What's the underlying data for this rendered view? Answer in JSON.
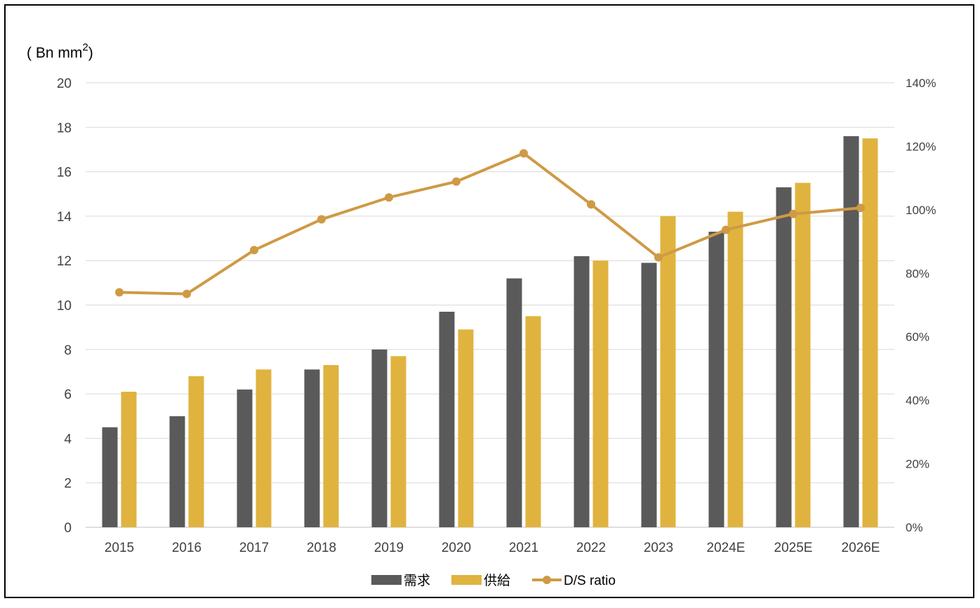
{
  "chart_data": {
    "type": "bar",
    "unit_label": "( Bn mm",
    "unit_sup": "2",
    "unit_close": ")",
    "categories": [
      "2015",
      "2016",
      "2017",
      "2018",
      "2019",
      "2020",
      "2021",
      "2022",
      "2023",
      "2024E",
      "2025E",
      "2026E"
    ],
    "series": [
      {
        "name": "需求",
        "type": "bar",
        "color": "#5a5a5a",
        "values": [
          4.5,
          5.0,
          6.2,
          7.1,
          8.0,
          9.7,
          11.2,
          12.2,
          11.9,
          13.3,
          15.3,
          17.6
        ]
      },
      {
        "name": "供給",
        "type": "bar",
        "color": "#e0b33f",
        "values": [
          6.1,
          6.8,
          7.1,
          7.3,
          7.7,
          8.9,
          9.5,
          12.0,
          14.0,
          14.2,
          15.5,
          17.5
        ]
      },
      {
        "name": "D/S ratio",
        "type": "line",
        "axis": "right",
        "color": "#cf9a45",
        "values": [
          0.74,
          0.735,
          0.873,
          0.97,
          1.039,
          1.089,
          1.178,
          1.017,
          0.85,
          0.937,
          0.987,
          1.006
        ]
      }
    ],
    "ylim": [
      0,
      20
    ],
    "yticks": [
      "0",
      "2",
      "4",
      "6",
      "8",
      "10",
      "12",
      "14",
      "16",
      "18",
      "20"
    ],
    "y2lim": [
      0,
      1.4
    ],
    "y2ticks": [
      "0%",
      "20%",
      "40%",
      "60%",
      "80%",
      "100%",
      "120%",
      "140%"
    ],
    "grid": true,
    "legend": "bottom"
  }
}
